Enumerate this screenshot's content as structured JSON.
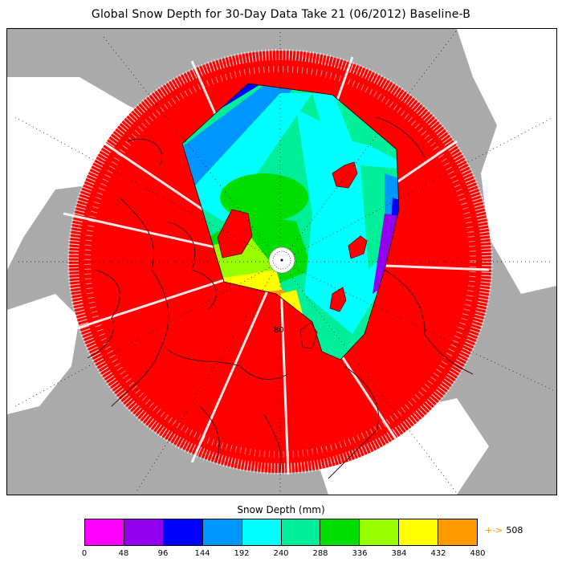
{
  "title": "Global Snow Depth for 30-Day Data Take 21 (06/2012) Baseline-B",
  "map": {
    "projection": "polar-stereographic-north",
    "latitude_label": "80",
    "colors": {
      "land": "#aaaaaa",
      "ocean": "#ffffff",
      "no_data_red": "#ff0000"
    }
  },
  "colorbar": {
    "title": "Snow Depth (mm)",
    "ticks": [
      "0",
      "48",
      "96",
      "144",
      "192",
      "240",
      "288",
      "336",
      "384",
      "432",
      "480"
    ],
    "colors": [
      "#ff00ff",
      "#9400ee",
      "#0000ff",
      "#0096ff",
      "#00ffff",
      "#00ee9a",
      "#00dd00",
      "#99ff00",
      "#ffff00",
      "#ff9900"
    ],
    "overflow_label": "508",
    "overflow_arrow": "+->"
  }
}
